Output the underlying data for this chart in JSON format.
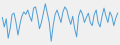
{
  "values": [
    0.3,
    -1.2,
    0.1,
    -3.0,
    -1.5,
    0.8,
    1.0,
    -0.5,
    -2.5,
    -0.8,
    0.5,
    1.2,
    0.8,
    1.5,
    0.5,
    -0.3,
    1.8,
    2.0,
    0.5,
    -1.5,
    -0.5,
    1.0,
    2.5,
    1.0,
    -0.5,
    -3.5,
    -1.0,
    0.8,
    1.5,
    0.5,
    -0.5,
    1.2,
    2.0,
    1.5,
    0.2,
    -0.8,
    0.5,
    -1.5,
    -2.8,
    0.5,
    1.5,
    0.8,
    -0.5,
    0.3,
    1.0,
    -0.5,
    -1.0,
    0.8,
    1.5,
    -0.5,
    -1.2,
    0.5,
    1.8,
    0.5,
    -0.5,
    1.2,
    0.5,
    -1.0,
    0.2,
    1.0
  ],
  "line_color": "#4d9ed4",
  "bg_color": "#f0f0f0",
  "linewidth": 0.7
}
